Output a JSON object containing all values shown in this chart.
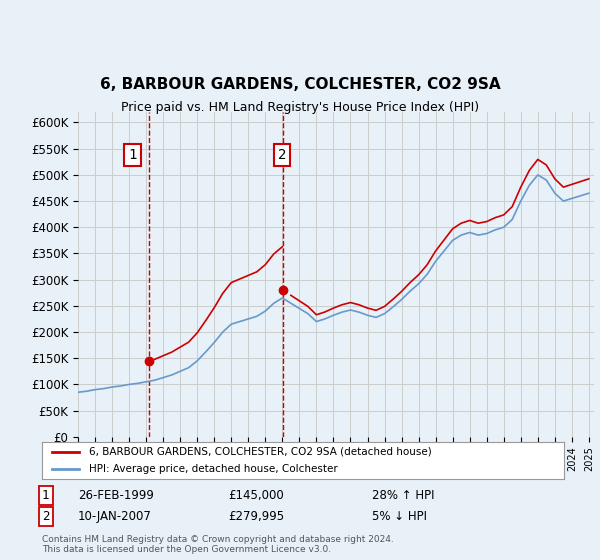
{
  "title": "6, BARBOUR GARDENS, COLCHESTER, CO2 9SA",
  "subtitle": "Price paid vs. HM Land Registry's House Price Index (HPI)",
  "legend_line1": "6, BARBOUR GARDENS, COLCHESTER, CO2 9SA (detached house)",
  "legend_line2": "HPI: Average price, detached house, Colchester",
  "transaction1_label": "1",
  "transaction1_date": "26-FEB-1999",
  "transaction1_price": "£145,000",
  "transaction1_hpi": "28% ↑ HPI",
  "transaction1_year": 1999.15,
  "transaction1_value": 145000,
  "transaction2_label": "2",
  "transaction2_date": "10-JAN-2007",
  "transaction2_price": "£279,995",
  "transaction2_hpi": "5% ↓ HPI",
  "transaction2_year": 2007.03,
  "transaction2_value": 279995,
  "footer": "Contains HM Land Registry data © Crown copyright and database right 2024.\nThis data is licensed under the Open Government Licence v3.0.",
  "ylim": [
    0,
    620000
  ],
  "yticks": [
    0,
    50000,
    100000,
    150000,
    200000,
    250000,
    300000,
    350000,
    400000,
    450000,
    500000,
    550000,
    600000
  ],
  "background_color": "#e8f0f8",
  "plot_bg_color": "#ffffff",
  "red_line_color": "#cc0000",
  "blue_line_color": "#6699cc",
  "dashed_line_color": "#cc0000",
  "marker_color": "#cc0000",
  "grid_color": "#cccccc"
}
